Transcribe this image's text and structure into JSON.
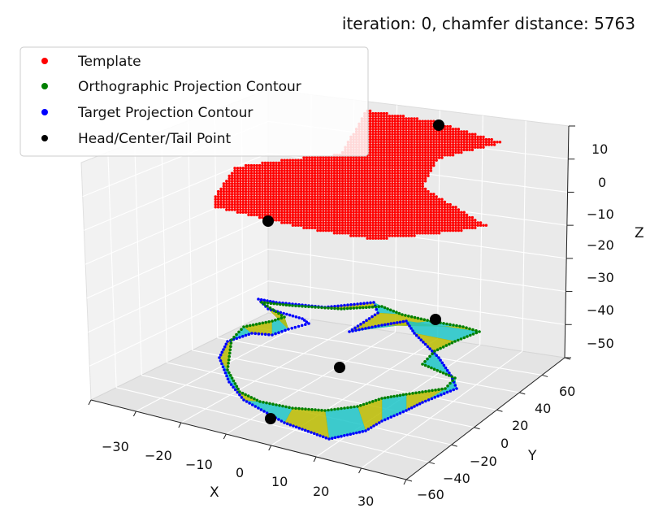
{
  "chart_data": {
    "type": "scatter3d",
    "title": "iteration: 0, chamfer distance: 5763",
    "xlabel": "X",
    "ylabel": "Y",
    "zlabel": "Z",
    "x_ticks": [
      "−30",
      "−20",
      "−10",
      "0",
      "10",
      "20",
      "30"
    ],
    "y_ticks": [
      "−60",
      "−40",
      "−20",
      "0",
      "20",
      "40",
      "60"
    ],
    "z_ticks": [
      "10",
      "0",
      "−10",
      "−20",
      "−30",
      "−40",
      "−50"
    ],
    "grid": true,
    "legend_position": "top-left",
    "series": [
      {
        "name": "Template",
        "color": "#ff0000"
      },
      {
        "name": "Orthographic Projection Contour",
        "color": "#008000"
      },
      {
        "name": "Target Projection Contour",
        "color": "#0000ff"
      },
      {
        "name": "Head/Center/Tail Point",
        "color": "#000000"
      }
    ],
    "key_points": [
      {
        "x": -5,
        "y": 40,
        "z": 14
      },
      {
        "x": -15,
        "y": -20,
        "z": -12
      },
      {
        "x": 18,
        "y": 40,
        "z": -45
      },
      {
        "x": 0,
        "y": 0,
        "z": -52
      },
      {
        "x": -6,
        "y": -45,
        "z": -55
      }
    ],
    "fill_colors": {
      "matched_a": "#bcbc00",
      "matched_b": "#1fc5c8"
    }
  }
}
